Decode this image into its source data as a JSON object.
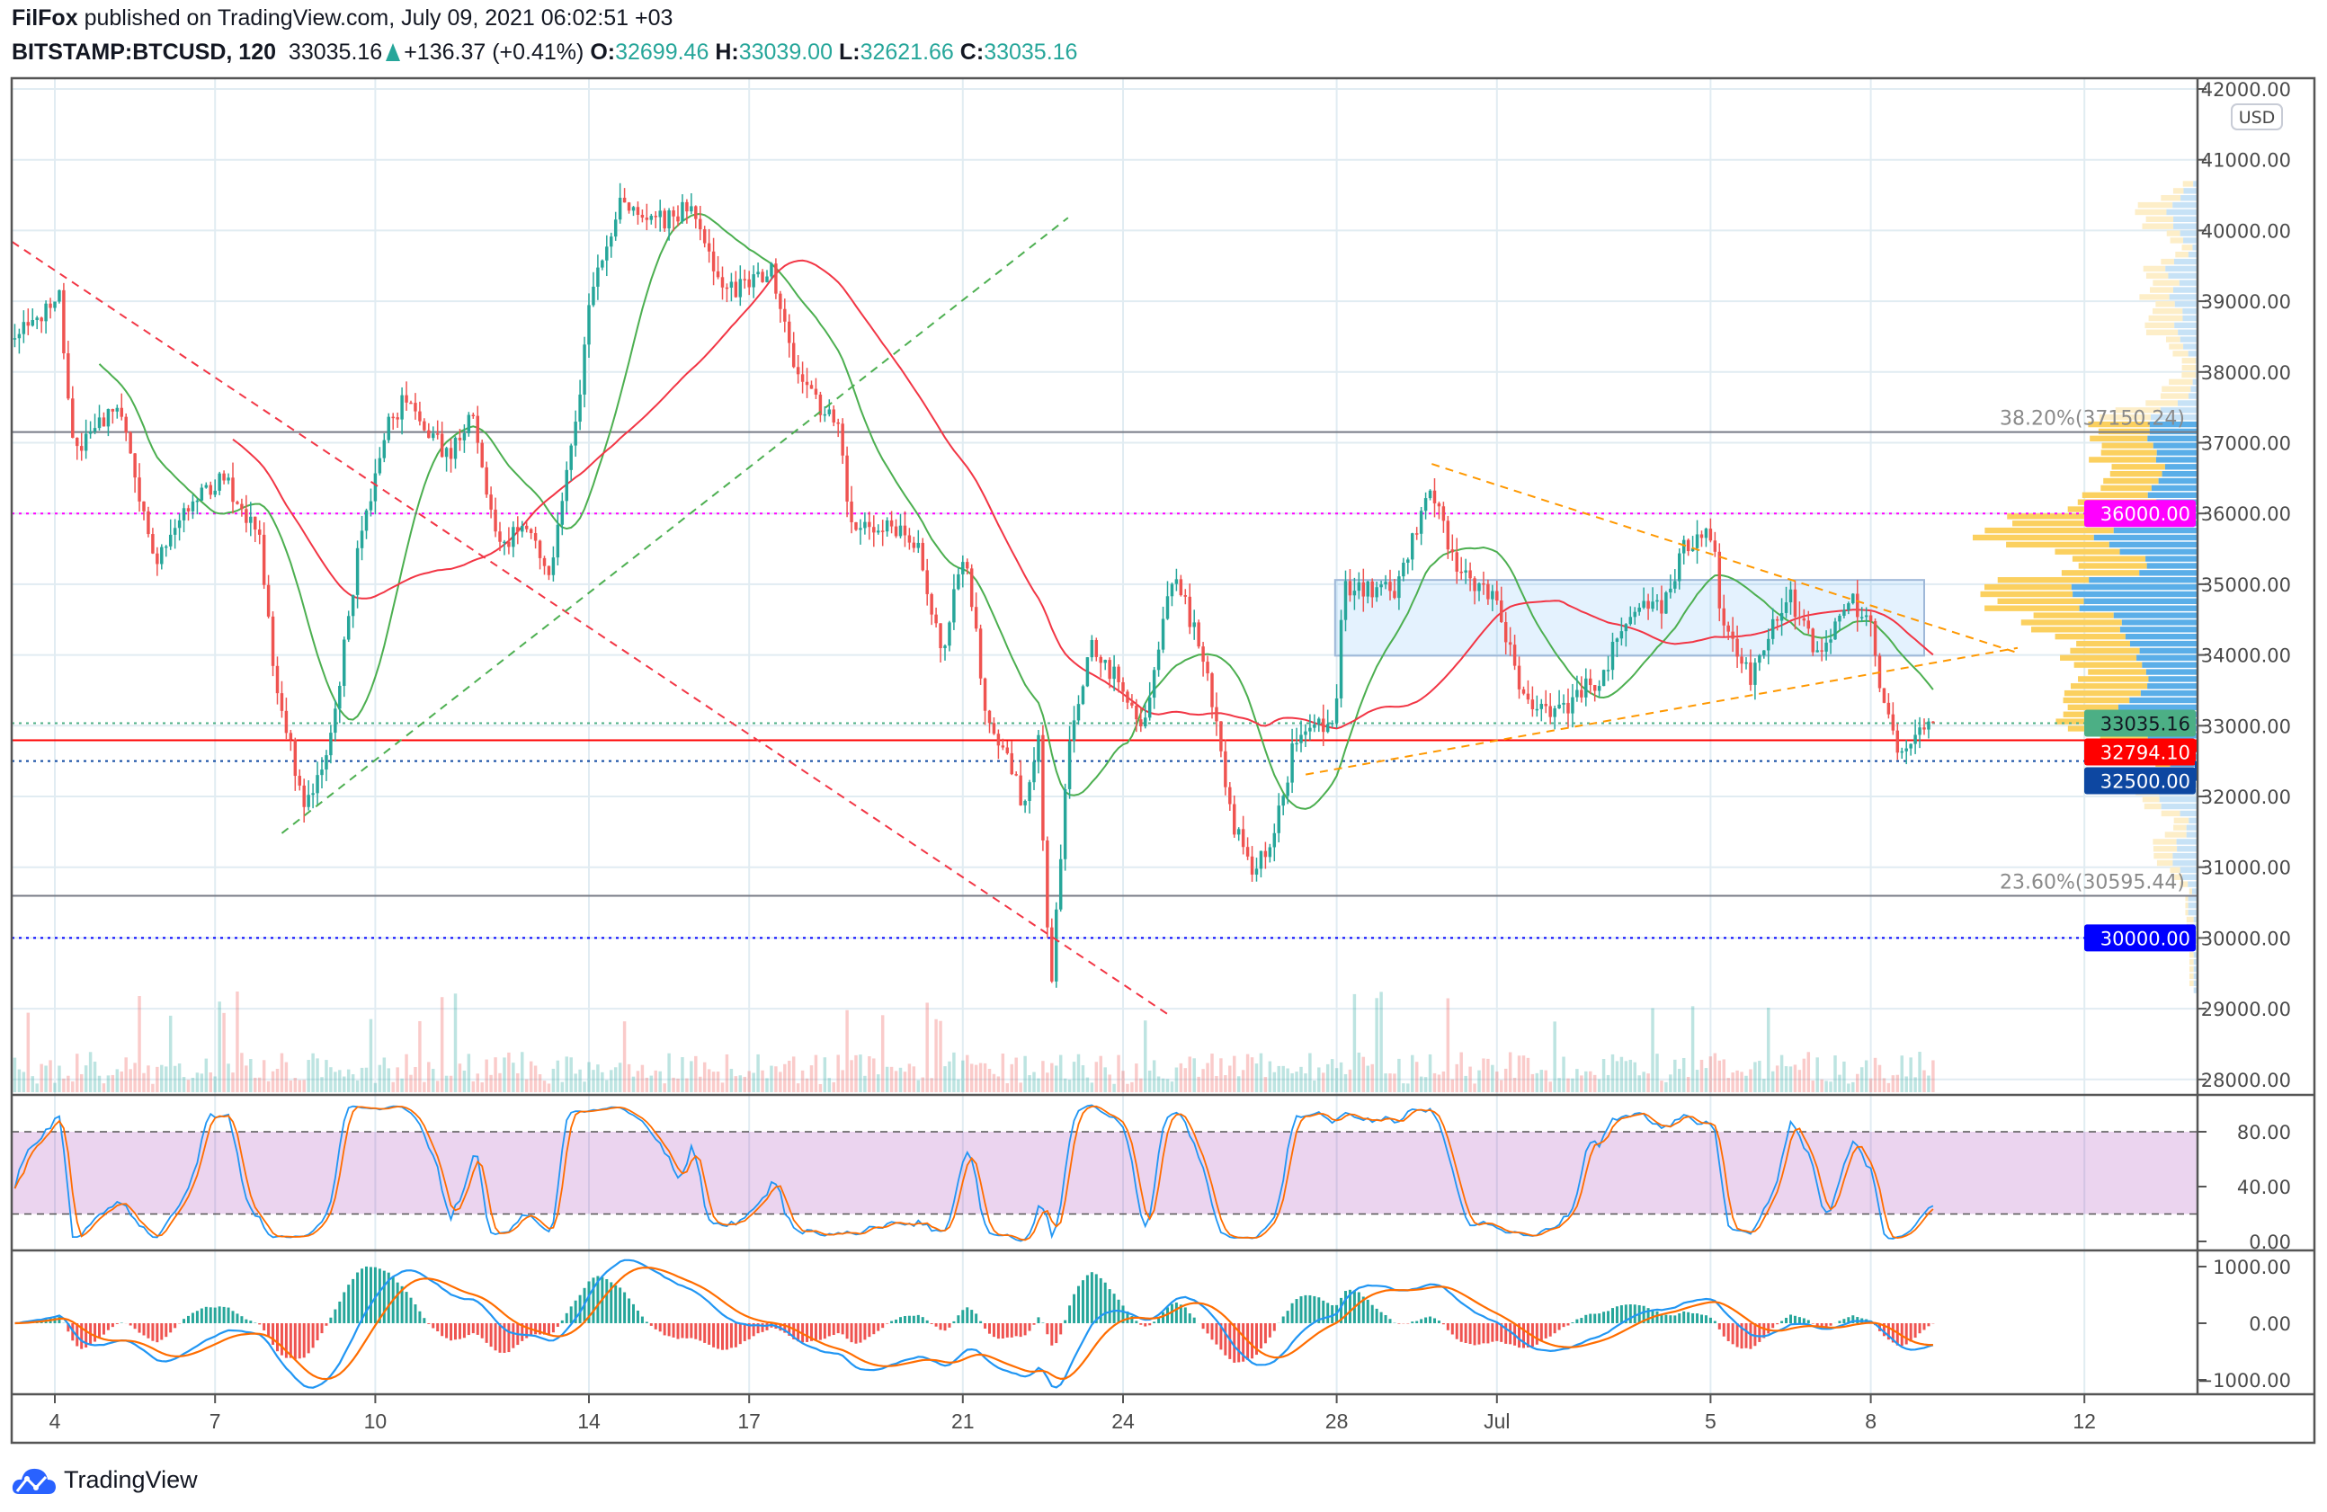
{
  "header": {
    "author": "FilFox",
    "published": "published on TradingView.com, July 09, 2021 06:02:51 +03",
    "symbol": "BITSTAMP:BTCUSD, 120",
    "last": "33035.16",
    "change": "+136.37 (+0.41%)",
    "o_label": "O:",
    "o": "32699.46",
    "h_label": "H:",
    "h": "33039.00",
    "l_label": "L:",
    "l": "32621.66",
    "c_label": "C:",
    "c": "33035.16"
  },
  "currency": "USD",
  "footer": {
    "brand": "TradingView"
  },
  "colors": {
    "up": "#26a69a",
    "down": "#ef5350",
    "ma_fast": "#4caf50",
    "ma_slow": "#f23645",
    "stoch_k": "#2196f3",
    "stoch_d": "#ff6d00",
    "macd": "#2196f3",
    "signal": "#ff6d00"
  },
  "chart_data": {
    "type": "candlestick",
    "title": "BITSTAMP:BTCUSD, 120",
    "x_unit": "days since June 4, 2021",
    "ylim": [
      27800,
      42200
    ],
    "xlim": [
      -0.9,
      40.1
    ],
    "y_ticks": [
      "42000.00",
      "41000.00",
      "40000.00",
      "39000.00",
      "38000.00",
      "37000.00",
      "36000.00",
      "35000.00",
      "34000.00",
      "33000.00",
      "32000.00",
      "31000.00",
      "30000.00",
      "29000.00",
      "28000.00"
    ],
    "x_ticks": [
      {
        "day": 0,
        "label": "4"
      },
      {
        "day": 3,
        "label": "7"
      },
      {
        "day": 6,
        "label": "10"
      },
      {
        "day": 10,
        "label": "14"
      },
      {
        "day": 13,
        "label": "17"
      },
      {
        "day": 17,
        "label": "21"
      },
      {
        "day": 20,
        "label": "24"
      },
      {
        "day": 24,
        "label": "28"
      },
      {
        "day": 27,
        "label": "Jul"
      },
      {
        "day": 31,
        "label": "5"
      },
      {
        "day": 34,
        "label": "8"
      },
      {
        "day": 38,
        "label": "12"
      }
    ],
    "price_path": [
      [
        -0.75,
        38440
      ],
      [
        0.08,
        39100
      ],
      [
        0.36,
        36800
      ],
      [
        1.19,
        37600
      ],
      [
        1.89,
        35300
      ],
      [
        2.44,
        36100
      ],
      [
        3.14,
        36500
      ],
      [
        3.83,
        35700
      ],
      [
        4.11,
        33800
      ],
      [
        4.67,
        31800
      ],
      [
        5.22,
        33000
      ],
      [
        5.64,
        35300
      ],
      [
        6.19,
        37200
      ],
      [
        6.61,
        37700
      ],
      [
        7.31,
        36800
      ],
      [
        7.86,
        37400
      ],
      [
        8.28,
        35500
      ],
      [
        8.83,
        35800
      ],
      [
        9.25,
        35000
      ],
      [
        9.81,
        37600
      ],
      [
        10.08,
        39300
      ],
      [
        10.64,
        40500
      ],
      [
        11.19,
        40100
      ],
      [
        11.89,
        40300
      ],
      [
        12.58,
        39100
      ],
      [
        13.42,
        39400
      ],
      [
        13.97,
        37800
      ],
      [
        14.67,
        37200
      ],
      [
        14.94,
        35700
      ],
      [
        15.64,
        35900
      ],
      [
        16.19,
        35500
      ],
      [
        16.61,
        34000
      ],
      [
        17.03,
        35500
      ],
      [
        17.44,
        33200
      ],
      [
        18.14,
        31900
      ],
      [
        18.42,
        32800
      ],
      [
        18.64,
        29200
      ],
      [
        18.97,
        32600
      ],
      [
        19.39,
        34200
      ],
      [
        20.08,
        33400
      ],
      [
        20.36,
        33000
      ],
      [
        20.92,
        35100
      ],
      [
        21.33,
        34400
      ],
      [
        21.61,
        33600
      ],
      [
        22.03,
        31700
      ],
      [
        22.44,
        30900
      ],
      [
        22.86,
        31600
      ],
      [
        23.28,
        33000
      ],
      [
        23.97,
        33000
      ],
      [
        24.11,
        34900
      ],
      [
        25.08,
        34900
      ],
      [
        25.78,
        36300
      ],
      [
        26.33,
        35100
      ],
      [
        27.03,
        34700
      ],
      [
        27.44,
        33400
      ],
      [
        28.14,
        33200
      ],
      [
        28.97,
        33700
      ],
      [
        29.53,
        34700
      ],
      [
        30.08,
        34700
      ],
      [
        30.5,
        35500
      ],
      [
        31.06,
        35700
      ],
      [
        31.19,
        34500
      ],
      [
        31.75,
        33700
      ],
      [
        32.44,
        34900
      ],
      [
        33.0,
        34000
      ],
      [
        33.56,
        34800
      ],
      [
        33.97,
        34500
      ],
      [
        34.25,
        33200
      ],
      [
        34.53,
        32600
      ],
      [
        34.94,
        33000
      ],
      [
        35.22,
        33035.16
      ]
    ],
    "horizontal_levels": [
      {
        "price": 37150.24,
        "label": "38.20%(37150.24)",
        "color": "#787b86",
        "style": "solid"
      },
      {
        "price": 30595.44,
        "label": "23.60%(30595.44)",
        "color": "#787b86",
        "style": "solid"
      },
      {
        "price": 36000,
        "label": "36000.00",
        "color": "#ff00ff",
        "style": "dotted"
      },
      {
        "price": 33035.16,
        "label": "33035.16",
        "color": "#4caf85",
        "style": "dotted"
      },
      {
        "price": 32794.1,
        "label": "32794.10",
        "color": "#ff0000",
        "style": "solid"
      },
      {
        "price": 32500,
        "label": "32500.00",
        "color": "#0d47a1",
        "style": "dotted"
      },
      {
        "price": 30000,
        "label": "30000.00",
        "color": "#0000ff",
        "style": "dotted"
      }
    ],
    "trendlines": [
      {
        "name": "downtrend-line",
        "from": [
          -0.8,
          39840
        ],
        "to": [
          20.92,
          28880
        ],
        "color": "#f23645"
      },
      {
        "name": "uptrend-line",
        "from": [
          4.25,
          31480
        ],
        "to": [
          18.97,
          40180
        ],
        "color": "#4caf50"
      },
      {
        "name": "triangle-upper-line",
        "from": [
          25.78,
          36700
        ],
        "to": [
          36.75,
          34030
        ],
        "color": "#ff9800"
      },
      {
        "name": "triangle-lower-line",
        "from": [
          23.42,
          32310
        ],
        "to": [
          36.75,
          34100
        ],
        "color": "#ff9800"
      }
    ],
    "range_box": {
      "from_day": 23.97,
      "to_day": 35.0,
      "top": 35060,
      "bottom": 33990
    },
    "stochastic": {
      "ylim": [
        0,
        100
      ],
      "upper": 80,
      "lower": 20,
      "ticks": [
        "80.00",
        "40.00",
        "0.00"
      ]
    },
    "macd": {
      "ylim": [
        -1150,
        1150
      ],
      "ticks": [
        {
          "v": 1000,
          "label": "1000.00"
        },
        {
          "v": 0,
          "label": "0.00"
        },
        {
          "v": -1000,
          "label": "−1000.00"
        }
      ]
    }
  }
}
